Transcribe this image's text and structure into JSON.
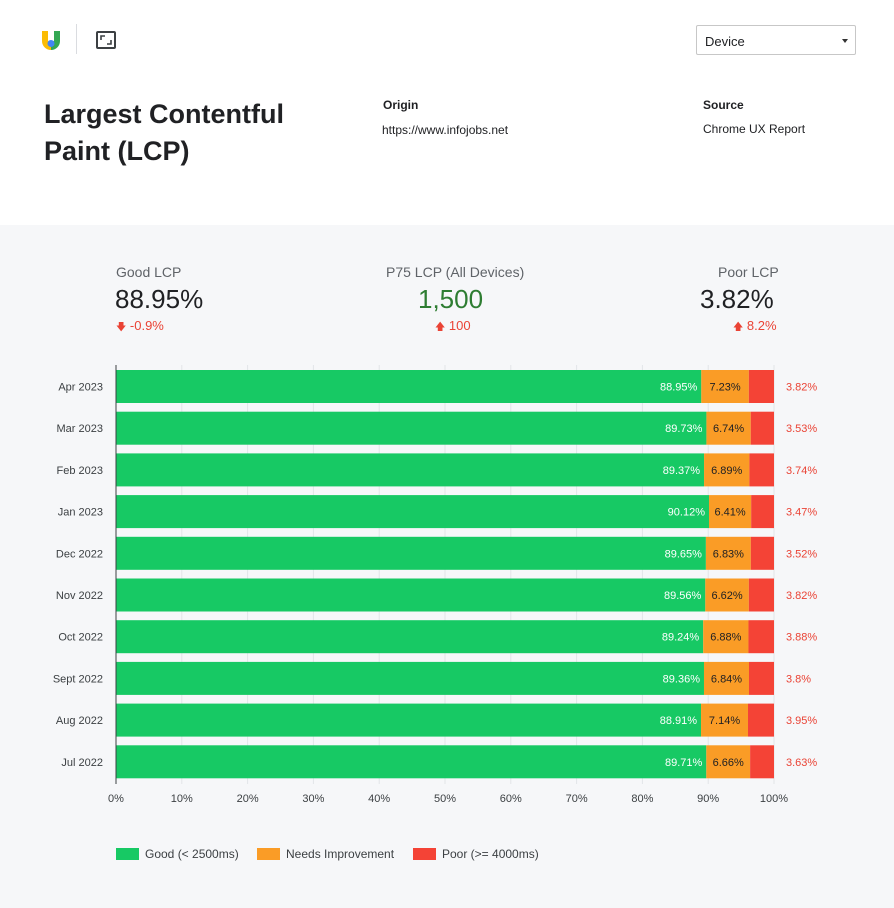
{
  "header": {
    "device_select": "Device"
  },
  "report": {
    "title": "Largest Contentful Paint (LCP)",
    "origin_label": "Origin",
    "origin_value": "https://www.infojobs.net",
    "source_label": "Source",
    "source_value": "Chrome UX Report"
  },
  "kpis": {
    "good": {
      "label": "Good LCP",
      "value": "88.95%",
      "delta": "-0.9%",
      "delta_direction": "down"
    },
    "p75": {
      "label": "P75 LCP (All Devices)",
      "value": "1,500",
      "delta": "100",
      "delta_direction": "up"
    },
    "poor": {
      "label": "Poor LCP",
      "value": "3.82%",
      "delta": "8.2%",
      "delta_direction": "up"
    }
  },
  "colors": {
    "good": "#17c964",
    "needs_improvement": "#fa9c26",
    "poor": "#f44336",
    "poor_label": "#ea4335"
  },
  "chart_data": {
    "type": "bar",
    "orientation": "horizontal",
    "stacked": true,
    "categories": [
      "Apr 2023",
      "Mar 2023",
      "Feb 2023",
      "Jan 2023",
      "Dec 2022",
      "Nov 2022",
      "Oct 2022",
      "Sept 2022",
      "Aug 2022",
      "Jul 2022"
    ],
    "series": [
      {
        "name": "Good (< 2500ms)",
        "values": [
          88.95,
          89.73,
          89.37,
          90.12,
          89.65,
          89.56,
          89.24,
          89.36,
          88.91,
          89.71
        ]
      },
      {
        "name": "Needs Improvement",
        "values": [
          7.23,
          6.74,
          6.89,
          6.41,
          6.83,
          6.62,
          6.88,
          6.84,
          7.14,
          6.66
        ]
      },
      {
        "name": "Poor (>= 4000ms)",
        "values": [
          3.82,
          3.53,
          3.74,
          3.47,
          3.52,
          3.82,
          3.88,
          3.8,
          3.95,
          3.63
        ]
      }
    ],
    "xlim": [
      0,
      100
    ],
    "x_ticks": [
      "0%",
      "10%",
      "20%",
      "30%",
      "40%",
      "50%",
      "60%",
      "70%",
      "80%",
      "90%",
      "100%"
    ],
    "grid": true,
    "legend_position": "bottom-left"
  }
}
